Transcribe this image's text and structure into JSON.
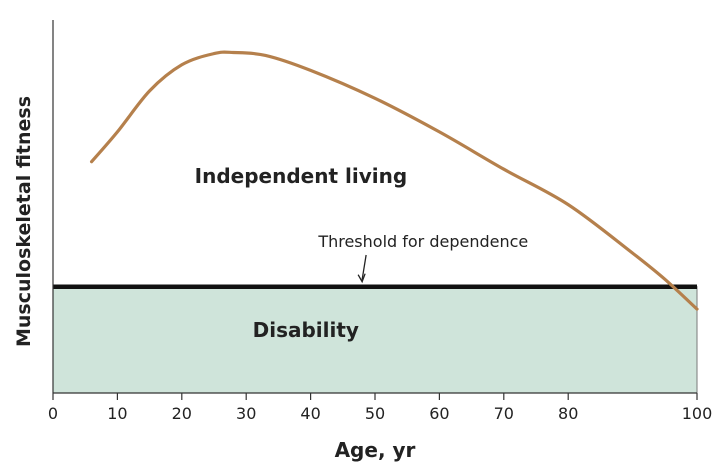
{
  "chart_data": {
    "type": "line",
    "title": "",
    "xlabel": "Age, yr",
    "ylabel": "Musculoskeletal fitness",
    "xlim": [
      0,
      100
    ],
    "ylim": [
      0,
      100
    ],
    "x_ticks": [
      "0",
      "10",
      "20",
      "30",
      "40",
      "50",
      "60",
      "70",
      "80",
      "100"
    ],
    "x_tick_values": [
      0,
      10,
      20,
      30,
      40,
      50,
      60,
      70,
      80,
      100
    ],
    "y_ticks": [],
    "grid": false,
    "series": [
      {
        "x": [
          6,
          10,
          15,
          20,
          25,
          28,
          33,
          40,
          50,
          60,
          70,
          80,
          90,
          95,
          100
        ],
        "y": [
          62,
          70,
          81,
          88,
          91,
          91.3,
          90.5,
          86.5,
          79,
          70,
          60,
          50.5,
          37.5,
          30.5,
          22.5
        ]
      }
    ],
    "threshold": {
      "y": 28.5,
      "label": "Threshold for dependence",
      "arrow_x": 48
    },
    "regions": [
      {
        "label": "Independent living",
        "position": "above threshold"
      },
      {
        "label": "Disability",
        "position": "below threshold"
      }
    ],
    "colors": {
      "curve": "#b5804c",
      "threshold": "#111111",
      "disability_fill": "#cfe4da",
      "axis": "#333333"
    }
  }
}
